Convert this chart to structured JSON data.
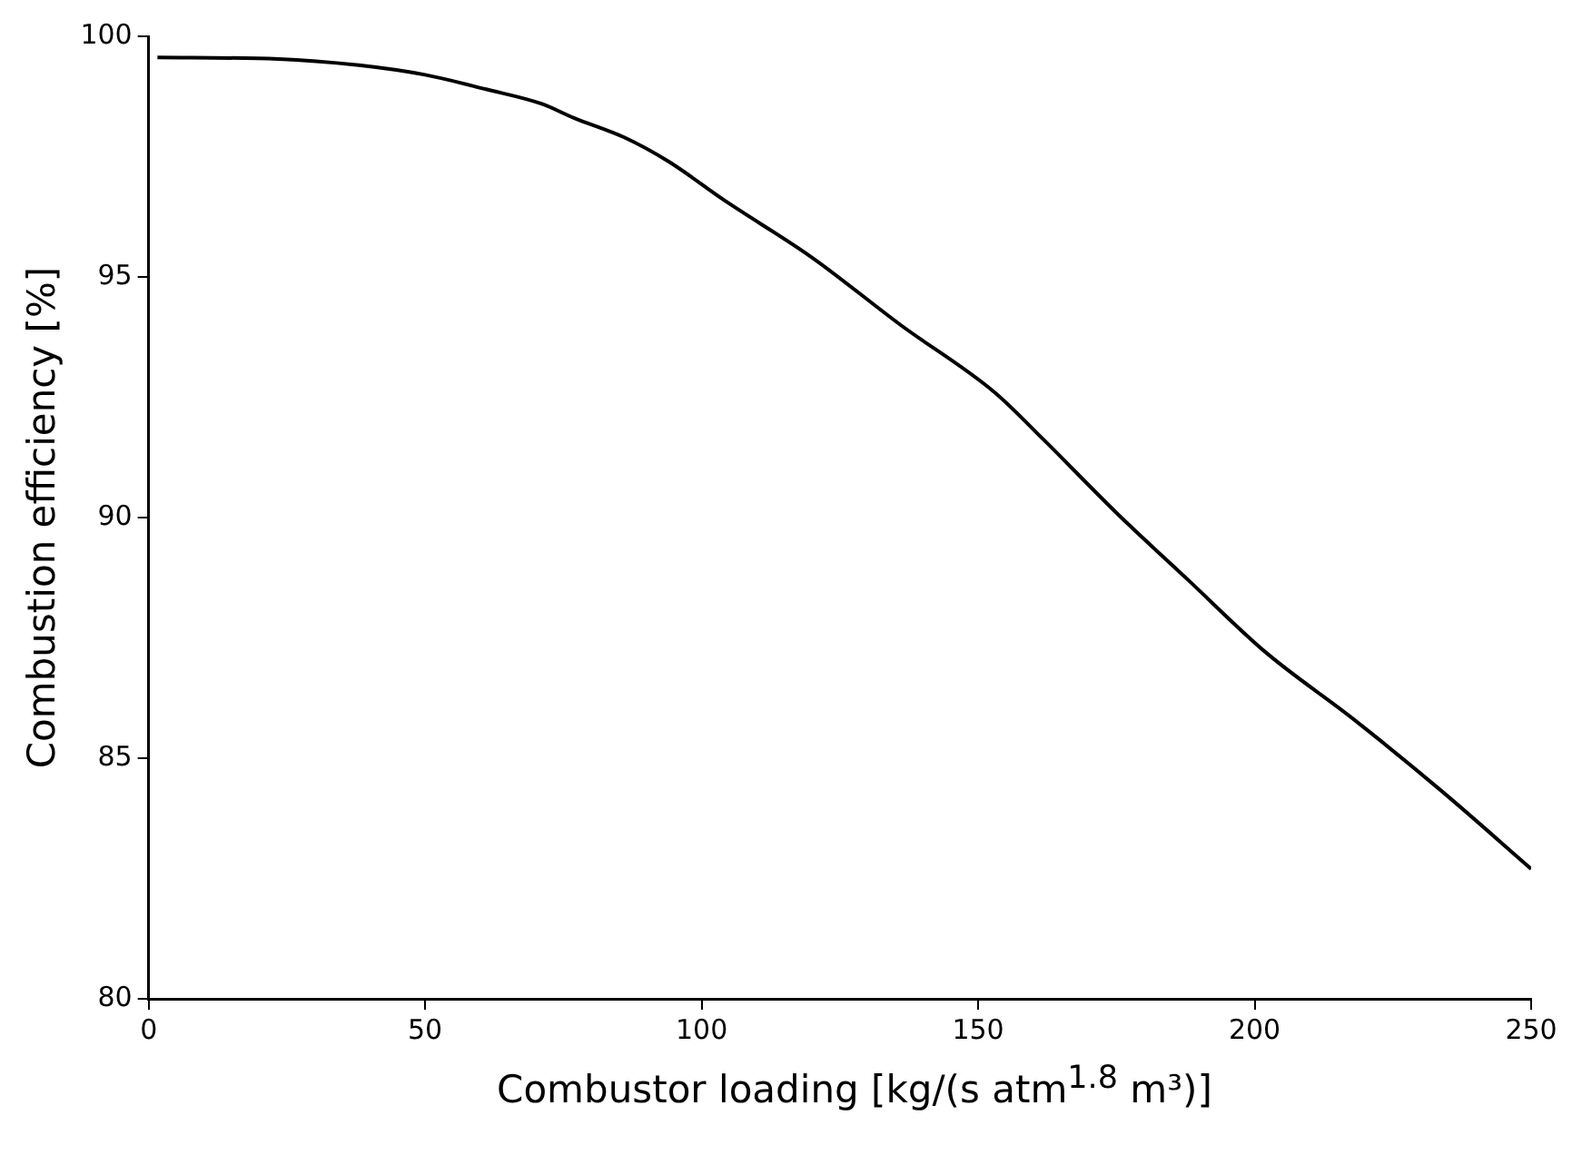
{
  "chart_data": {
    "type": "line",
    "xlabel": "Combustor loading [kg/(s atm$^{1.8}$ m³)]",
    "ylabel": "Combustion efficiency [%]",
    "x": [
      1.6,
      23.5,
      38,
      50,
      61,
      71,
      77,
      86,
      94,
      104,
      120,
      136,
      153,
      162,
      175,
      188,
      202,
      218,
      234,
      250
    ],
    "series": [
      {
        "color": "#000000",
        "values": [
          99.56,
          99.53,
          99.4,
          99.2,
          98.9,
          98.6,
          98.3,
          97.9,
          97.4,
          96.6,
          95.4,
          94.0,
          92.6,
          91.6,
          90.1,
          88.7,
          87.2,
          85.8,
          84.3,
          82.7
        ]
      }
    ],
    "xlim": [
      0,
      250
    ],
    "xticks": [
      0,
      50,
      100,
      150,
      200,
      250
    ],
    "ylim": [
      80,
      100
    ],
    "yticks": [
      80,
      85,
      90,
      95,
      100
    ],
    "grid": false,
    "legend": false,
    "marker": "none",
    "line_style": "solid"
  }
}
